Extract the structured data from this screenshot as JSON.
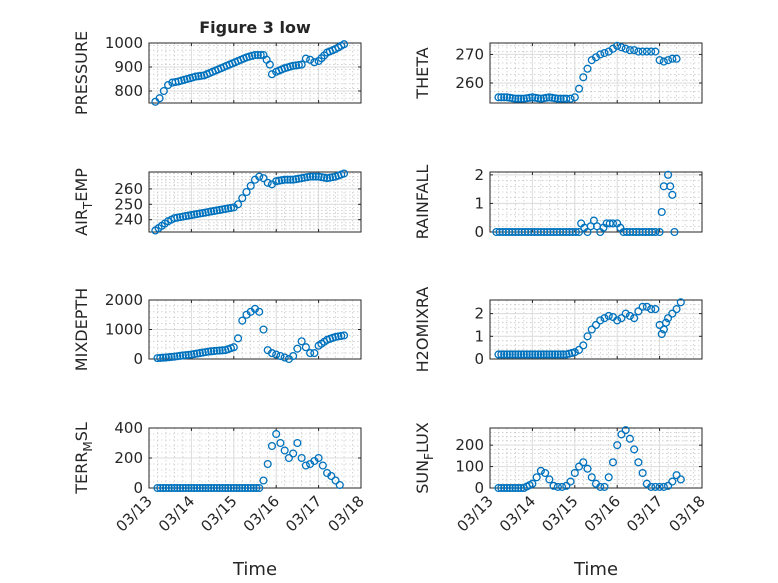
{
  "chart_data": [
    {
      "type": "scatter",
      "title": "Figure 3 low",
      "ylabel": "PRESSURE",
      "xlabel": "",
      "xlim": [
        0,
        5
      ],
      "ylim": [
        750,
        1000
      ],
      "yticks": [
        800,
        900,
        1000
      ],
      "xticks": [
        "03/13",
        "03/14",
        "03/15",
        "03/16",
        "03/17",
        "03/18"
      ],
      "grid": true,
      "marker": "circle",
      "color": "#0072BD",
      "series": [
        {
          "x": [
            0.15,
            0.25,
            0.35,
            0.45,
            0.55,
            0.7,
            0.9,
            1.1,
            1.3,
            1.5,
            1.7,
            1.9,
            2.1,
            2.3,
            2.5,
            2.7,
            2.85,
            2.9,
            3.0,
            3.2,
            3.4,
            3.6,
            3.7,
            3.8,
            3.9,
            4.0,
            4.2,
            4.4,
            4.6
          ],
          "y": [
            755,
            770,
            800,
            825,
            835,
            840,
            850,
            860,
            865,
            880,
            895,
            910,
            925,
            940,
            950,
            950,
            910,
            870,
            880,
            895,
            905,
            910,
            935,
            930,
            920,
            925,
            960,
            975,
            995
          ]
        }
      ]
    },
    {
      "type": "scatter",
      "ylabel": "THETA",
      "xlabel": "",
      "xlim": [
        0,
        5
      ],
      "ylim": [
        253,
        274
      ],
      "yticks": [
        260,
        270
      ],
      "xticks": [
        "03/13",
        "03/14",
        "03/15",
        "03/16",
        "03/17",
        "03/18"
      ],
      "grid": true,
      "marker": "circle",
      "color": "#0072BD",
      "series": [
        {
          "x": [
            0.2,
            0.4,
            0.6,
            0.8,
            1.0,
            1.2,
            1.4,
            1.6,
            1.8,
            1.9,
            2.0,
            2.1,
            2.2,
            2.3,
            2.4,
            2.5,
            2.6,
            2.7,
            2.8,
            2.9,
            3.0,
            3.1,
            3.2,
            3.3,
            3.4,
            3.5,
            3.6,
            3.7,
            3.8,
            3.9,
            4.0,
            4.1,
            4.2,
            4.3,
            4.4
          ],
          "y": [
            255,
            255,
            254.5,
            254.5,
            255,
            254.5,
            255,
            254.5,
            254.5,
            254.5,
            255,
            258,
            262,
            265,
            268,
            269,
            270,
            270.5,
            271,
            272,
            273,
            272.5,
            272,
            271.5,
            271.5,
            271,
            271,
            271,
            271,
            271,
            268,
            267.5,
            268,
            268.5,
            268.5
          ]
        }
      ]
    },
    {
      "type": "scatter",
      "ylabel": "AIR_TEMP",
      "xlabel": "",
      "xlim": [
        0,
        5
      ],
      "ylim": [
        232,
        271
      ],
      "yticks": [
        240,
        250,
        260
      ],
      "xticks": [
        "03/13",
        "03/14",
        "03/15",
        "03/16",
        "03/17",
        "03/18"
      ],
      "grid": true,
      "marker": "circle",
      "color": "#0072BD",
      "series": [
        {
          "x": [
            0.15,
            0.3,
            0.45,
            0.6,
            0.8,
            1.0,
            1.2,
            1.4,
            1.6,
            1.8,
            2.0,
            2.1,
            2.2,
            2.3,
            2.4,
            2.5,
            2.6,
            2.7,
            2.8,
            2.9,
            3.0,
            3.2,
            3.4,
            3.6,
            3.8,
            4.0,
            4.2,
            4.4,
            4.6
          ],
          "y": [
            233,
            236,
            239,
            241,
            242,
            243,
            244,
            245,
            246,
            247,
            248,
            250,
            254,
            258,
            262,
            266,
            268,
            267,
            264,
            263,
            265,
            266,
            266,
            267,
            268,
            268,
            267,
            268,
            270
          ]
        }
      ]
    },
    {
      "type": "scatter",
      "ylabel": "RAINFALL",
      "xlabel": "",
      "xlim": [
        0,
        5
      ],
      "ylim": [
        0,
        2.1
      ],
      "yticks": [
        0,
        1,
        2
      ],
      "xticks": [
        "03/13",
        "03/14",
        "03/15",
        "03/16",
        "03/17",
        "03/18"
      ],
      "grid": true,
      "marker": "circle",
      "color": "#0072BD",
      "series": [
        {
          "x": [
            0.15,
            0.3,
            0.45,
            0.6,
            0.75,
            0.9,
            1.05,
            1.2,
            1.35,
            1.5,
            1.65,
            1.8,
            1.95,
            2.1,
            2.15,
            2.3,
            2.45,
            2.6,
            2.75,
            2.9,
            3.0,
            3.15,
            3.3,
            3.45,
            3.6,
            3.75,
            3.9,
            4.0,
            4.05,
            4.1,
            4.2,
            4.25,
            4.3,
            4.35
          ],
          "y": [
            0,
            0,
            0,
            0,
            0,
            0,
            0,
            0,
            0,
            0,
            0,
            0,
            0,
            0,
            0.3,
            0,
            0.4,
            0,
            0.3,
            0.3,
            0.3,
            0,
            0,
            0,
            0,
            0,
            0,
            0,
            0.7,
            1.6,
            2.0,
            1.6,
            1.3,
            0
          ]
        }
      ]
    },
    {
      "type": "scatter",
      "ylabel": "MIXDEPTH",
      "xlabel": "",
      "xlim": [
        0,
        5
      ],
      "ylim": [
        0,
        2000
      ],
      "yticks": [
        0,
        1000,
        2000
      ],
      "xticks": [
        "03/13",
        "03/14",
        "03/15",
        "03/16",
        "03/17",
        "03/18"
      ],
      "grid": true,
      "marker": "circle",
      "color": "#0072BD",
      "series": [
        {
          "x": [
            0.2,
            0.4,
            0.6,
            0.8,
            1.0,
            1.2,
            1.4,
            1.6,
            1.8,
            2.0,
            2.1,
            2.2,
            2.3,
            2.4,
            2.5,
            2.6,
            2.7,
            2.8,
            2.9,
            3.0,
            3.1,
            3.2,
            3.3,
            3.4,
            3.5,
            3.6,
            3.7,
            3.8,
            3.9,
            4.0,
            4.2,
            4.4,
            4.6
          ],
          "y": [
            30,
            50,
            80,
            120,
            150,
            200,
            250,
            280,
            300,
            400,
            700,
            1300,
            1500,
            1600,
            1700,
            1600,
            1000,
            300,
            200,
            150,
            100,
            50,
            0,
            100,
            350,
            600,
            400,
            200,
            200,
            450,
            650,
            750,
            800
          ]
        }
      ]
    },
    {
      "type": "scatter",
      "ylabel": "H2OMIXRA",
      "xlabel": "",
      "xlim": [
        0,
        5
      ],
      "ylim": [
        0,
        2.6
      ],
      "yticks": [
        0,
        1,
        2
      ],
      "xticks": [
        "03/13",
        "03/14",
        "03/15",
        "03/16",
        "03/17",
        "03/18"
      ],
      "grid": true,
      "marker": "circle",
      "color": "#0072BD",
      "series": [
        {
          "x": [
            0.2,
            0.4,
            0.6,
            0.8,
            1.0,
            1.2,
            1.4,
            1.6,
            1.8,
            2.0,
            2.1,
            2.2,
            2.3,
            2.4,
            2.5,
            2.6,
            2.7,
            2.8,
            2.9,
            3.0,
            3.1,
            3.2,
            3.3,
            3.4,
            3.5,
            3.6,
            3.7,
            3.8,
            3.9,
            4.0,
            4.05,
            4.1,
            4.15,
            4.2,
            4.3,
            4.4,
            4.5
          ],
          "y": [
            0.2,
            0.2,
            0.2,
            0.2,
            0.2,
            0.2,
            0.2,
            0.2,
            0.2,
            0.3,
            0.4,
            0.6,
            1.0,
            1.3,
            1.5,
            1.7,
            1.8,
            1.9,
            1.85,
            1.7,
            1.8,
            2.0,
            1.9,
            1.8,
            2.1,
            2.3,
            2.3,
            2.2,
            2.2,
            1.5,
            1.1,
            1.3,
            1.6,
            1.8,
            2.0,
            2.2,
            2.5
          ]
        }
      ]
    },
    {
      "type": "scatter",
      "ylabel": "TERR_MSL",
      "xlabel": "Time",
      "xlim": [
        0,
        5
      ],
      "ylim": [
        0,
        400
      ],
      "yticks": [
        0,
        200,
        400
      ],
      "xticks": [
        "03/13",
        "03/14",
        "03/15",
        "03/16",
        "03/17",
        "03/18"
      ],
      "grid": true,
      "marker": "circle",
      "color": "#0072BD",
      "series": [
        {
          "x": [
            0.2,
            0.4,
            0.6,
            0.8,
            1.0,
            1.2,
            1.4,
            1.6,
            1.8,
            2.0,
            2.2,
            2.4,
            2.6,
            2.7,
            2.8,
            2.9,
            3.0,
            3.1,
            3.2,
            3.3,
            3.4,
            3.5,
            3.6,
            3.7,
            3.8,
            3.9,
            4.0,
            4.1,
            4.2,
            4.3,
            4.4,
            4.5
          ],
          "y": [
            0,
            0,
            0,
            0,
            0,
            0,
            0,
            0,
            0,
            0,
            0,
            0,
            0,
            50,
            160,
            280,
            360,
            300,
            250,
            200,
            230,
            300,
            200,
            150,
            160,
            180,
            200,
            150,
            100,
            80,
            50,
            20
          ]
        }
      ]
    },
    {
      "type": "scatter",
      "ylabel": "SUN_FLUX",
      "xlabel": "Time",
      "xlim": [
        0,
        5
      ],
      "ylim": [
        0,
        280
      ],
      "yticks": [
        0,
        100,
        200
      ],
      "xticks": [
        "03/13",
        "03/14",
        "03/15",
        "03/16",
        "03/17",
        "03/18"
      ],
      "grid": true,
      "marker": "circle",
      "color": "#0072BD",
      "series": [
        {
          "x": [
            0.2,
            0.4,
            0.6,
            0.8,
            1.0,
            1.1,
            1.2,
            1.3,
            1.4,
            1.5,
            1.6,
            1.7,
            1.8,
            1.9,
            2.0,
            2.1,
            2.2,
            2.3,
            2.4,
            2.5,
            2.6,
            2.7,
            2.8,
            2.9,
            3.0,
            3.1,
            3.2,
            3.3,
            3.4,
            3.5,
            3.6,
            3.7,
            3.8,
            3.9,
            4.0,
            4.1,
            4.2,
            4.3,
            4.4,
            4.5
          ],
          "y": [
            0,
            0,
            0,
            0,
            20,
            50,
            80,
            70,
            40,
            10,
            5,
            5,
            10,
            30,
            70,
            100,
            120,
            90,
            50,
            20,
            5,
            5,
            50,
            120,
            200,
            250,
            270,
            230,
            180,
            120,
            70,
            20,
            5,
            5,
            5,
            5,
            10,
            30,
            60,
            40
          ]
        }
      ]
    }
  ]
}
